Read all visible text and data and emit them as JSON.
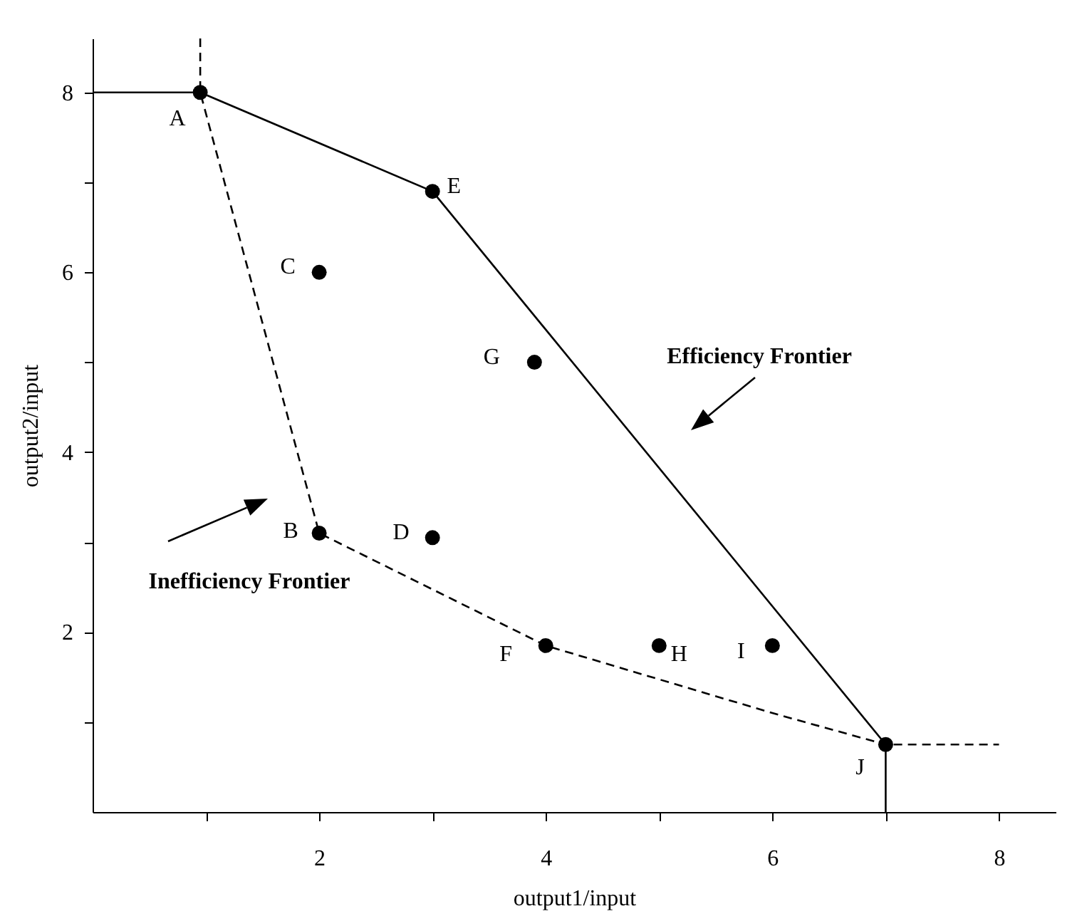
{
  "chart_data": {
    "type": "scatter",
    "xlabel": "output1/input",
    "ylabel": "output2/input",
    "xlim": [
      0,
      8.5
    ],
    "ylim": [
      0,
      8.6
    ],
    "xticks": [
      {
        "value": 1,
        "label": null
      },
      2,
      {
        "value": 3,
        "label": null
      },
      4,
      {
        "value": 5,
        "label": null
      },
      6,
      {
        "value": 7,
        "label": null
      },
      8
    ],
    "yticks": [
      {
        "value": 1,
        "label": null
      },
      2,
      {
        "value": 3,
        "label": null
      },
      4,
      {
        "value": 5,
        "label": null
      },
      6,
      {
        "value": 7,
        "label": null
      },
      8
    ],
    "series": [
      {
        "type": "line",
        "color": "#000000",
        "line_style": "solid",
        "x": [
          0,
          0.95,
          3,
          7,
          7
        ],
        "values": [
          8,
          8,
          6.9,
          0.75,
          0
        ]
      },
      {
        "type": "line",
        "color": "#000000",
        "line_style": "dashed",
        "x": [
          0.95,
          0.95,
          2,
          4,
          6,
          7,
          8
        ],
        "values": [
          8.6,
          8,
          3.1,
          1.85,
          1.1,
          0.75,
          0.75
        ]
      },
      {
        "color": "#000000",
        "marker": "circle",
        "x": [
          0.95,
          3,
          2,
          3.9,
          2,
          3,
          4,
          5,
          6,
          7
        ],
        "values": [
          8,
          6.9,
          6,
          5,
          3.1,
          3.05,
          1.85,
          1.85,
          1.85,
          0.75
        ]
      }
    ],
    "annotations": [
      {
        "text": "A",
        "x": 0.95,
        "y": 8
      },
      {
        "text": "E",
        "x": 3,
        "y": 6.9
      },
      {
        "text": "C",
        "x": 2,
        "y": 6
      },
      {
        "text": "G",
        "x": 3.9,
        "y": 5
      },
      {
        "text": "B",
        "x": 2,
        "y": 3.1
      },
      {
        "text": "D",
        "x": 3,
        "y": 3.05
      },
      {
        "text": "F",
        "x": 4,
        "y": 1.85
      },
      {
        "text": "H",
        "x": 5,
        "y": 1.85
      },
      {
        "text": "I",
        "x": 6,
        "y": 1.85
      },
      {
        "text": "J",
        "x": 7,
        "y": 0.75
      },
      "Efficiency Frontier",
      "Inefficiency Frontier"
    ]
  }
}
